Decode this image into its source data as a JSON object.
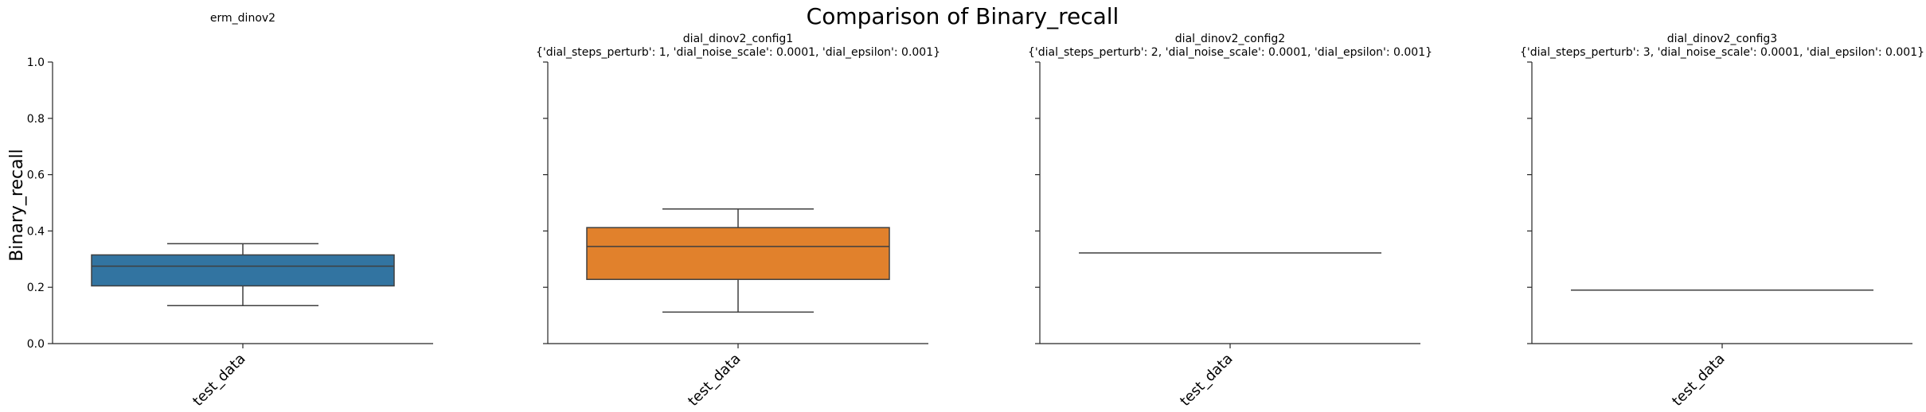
{
  "figure": {
    "title": "Comparison of Binary_recall",
    "ylabel": "Binary_recall"
  },
  "chart_data": [
    {
      "type": "box",
      "title": "erm_dinov2",
      "subtitle": "",
      "categories": [
        "test_data"
      ],
      "color": "#3274a1",
      "box": {
        "whisker_low": 0.135,
        "q1": 0.205,
        "median": 0.275,
        "q3": 0.315,
        "whisker_high": 0.355
      },
      "ylim": [
        0,
        1
      ],
      "yticks": [
        "0.0",
        "0.2",
        "0.4",
        "0.6",
        "0.8",
        "1.0"
      ]
    },
    {
      "type": "box",
      "title": "dial_dinov2_config1",
      "subtitle": "{'dial_steps_perturb': 1, 'dial_noise_scale': 0.0001, 'dial_epsilon': 0.001}",
      "categories": [
        "test_data"
      ],
      "color": "#e1812c",
      "box": {
        "whisker_low": 0.112,
        "q1": 0.228,
        "median": 0.345,
        "q3": 0.412,
        "whisker_high": 0.478
      },
      "ylim": [
        0,
        1
      ]
    },
    {
      "type": "box",
      "title": "dial_dinov2_config2",
      "subtitle": "{'dial_steps_perturb': 2, 'dial_noise_scale': 0.0001, 'dial_epsilon': 0.001}",
      "categories": [
        "test_data"
      ],
      "color": "#3a923a",
      "box": {
        "whisker_low": 0.322,
        "q1": 0.322,
        "median": 0.322,
        "q3": 0.322,
        "whisker_high": 0.322
      },
      "ylim": [
        0,
        1
      ]
    },
    {
      "type": "box",
      "title": "dial_dinov2_config3",
      "subtitle": "{'dial_steps_perturb': 3, 'dial_noise_scale': 0.0001, 'dial_epsilon': 0.001}",
      "categories": [
        "test_data"
      ],
      "color": "#c03d3e",
      "box": {
        "whisker_low": 0.19,
        "q1": 0.19,
        "median": 0.19,
        "q3": 0.19,
        "whisker_high": 0.19
      },
      "ylim": [
        0,
        1
      ]
    }
  ]
}
